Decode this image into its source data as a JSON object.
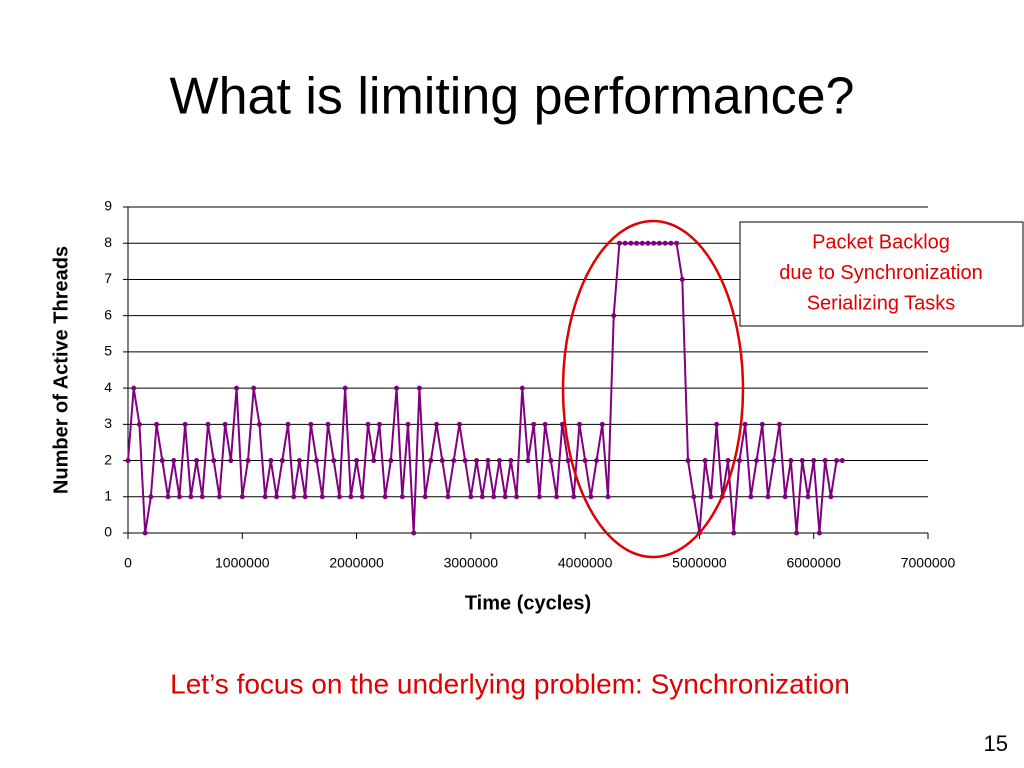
{
  "slide": {
    "title": "What is limiting performance?",
    "note": "Let’s focus on the underlying problem: Synchronization",
    "page": "15"
  },
  "chart_data": {
    "type": "line",
    "xlabel": "Time (cycles)",
    "ylabel": "Number of Active Threads",
    "annotation": [
      "Packet Backlog",
      "due to Synchronization",
      "Serializing Tasks"
    ],
    "x": [
      0,
      50000,
      100000,
      150000,
      200000,
      250000,
      300000,
      350000,
      400000,
      450000,
      500000,
      550000,
      600000,
      650000,
      700000,
      750000,
      800000,
      850000,
      900000,
      950000,
      1000000,
      1050000,
      1100000,
      1150000,
      1200000,
      1250000,
      1300000,
      1350000,
      1400000,
      1450000,
      1500000,
      1550000,
      1600000,
      1650000,
      1700000,
      1750000,
      1800000,
      1850000,
      1900000,
      1950000,
      2000000,
      2050000,
      2100000,
      2150000,
      2200000,
      2250000,
      2300000,
      2350000,
      2400000,
      2450000,
      2500000,
      2550000,
      2600000,
      2650000,
      2700000,
      2750000,
      2800000,
      2850000,
      2900000,
      2950000,
      3000000,
      3050000,
      3100000,
      3150000,
      3200000,
      3250000,
      3300000,
      3350000,
      3400000,
      3450000,
      3500000,
      3550000,
      3600000,
      3650000,
      3700000,
      3750000,
      3800000,
      3850000,
      3900000,
      3950000,
      4000000,
      4050000,
      4100000,
      4150000,
      4200000,
      4250000,
      4300000,
      4350000,
      4400000,
      4450000,
      4500000,
      4550000,
      4600000,
      4650000,
      4700000,
      4750000,
      4800000,
      4850000,
      4900000,
      4950000,
      5000000,
      5050000,
      5100000,
      5150000,
      5200000,
      5250000,
      5300000,
      5350000,
      5400000,
      5450000,
      5500000,
      5550000,
      5600000,
      5650000,
      5700000,
      5750000,
      5800000,
      5850000,
      5900000,
      5950000,
      6000000,
      6050000,
      6100000,
      6150000,
      6200000,
      6250000
    ],
    "series": [
      {
        "color": "#800080",
        "values": [
          2,
          4,
          3,
          0,
          1,
          3,
          2,
          1,
          2,
          1,
          3,
          1,
          2,
          1,
          3,
          2,
          1,
          3,
          2,
          4,
          1,
          2,
          4,
          3,
          1,
          2,
          1,
          2,
          3,
          1,
          2,
          1,
          3,
          2,
          1,
          3,
          2,
          1,
          4,
          1,
          2,
          1,
          3,
          2,
          3,
          1,
          2,
          4,
          1,
          3,
          0,
          4,
          1,
          2,
          3,
          2,
          1,
          2,
          3,
          2,
          1,
          2,
          1,
          2,
          1,
          2,
          1,
          2,
          1,
          4,
          2,
          3,
          1,
          3,
          2,
          1,
          3,
          2,
          1,
          3,
          2,
          1,
          2,
          3,
          1,
          6,
          8,
          8,
          8,
          8,
          8,
          8,
          8,
          8,
          8,
          8,
          8,
          7,
          2,
          1,
          0,
          2,
          1,
          3,
          1,
          2,
          0,
          2,
          3,
          1,
          2,
          3,
          1,
          2,
          3,
          1,
          2,
          0,
          2,
          1,
          2,
          0,
          2,
          1,
          2,
          2
        ]
      }
    ],
    "xlim": [
      0,
      7000000
    ],
    "xticks": [
      0,
      1000000,
      2000000,
      3000000,
      4000000,
      5000000,
      6000000,
      7000000
    ],
    "ylim": [
      0,
      9
    ],
    "yticks": [
      0,
      1,
      2,
      3,
      4,
      5,
      6,
      7,
      8,
      9
    ],
    "grid": true
  }
}
